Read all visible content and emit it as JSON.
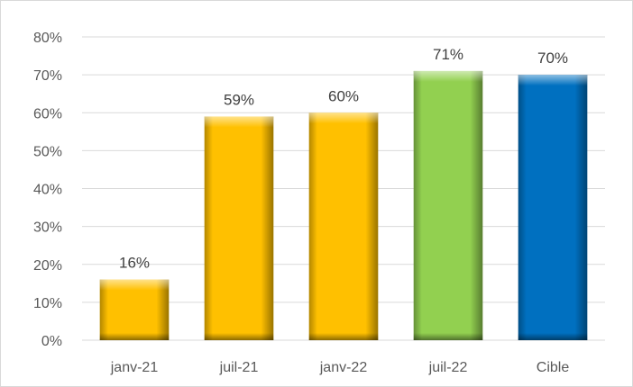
{
  "chart_data": {
    "type": "bar",
    "categories": [
      "janv-21",
      "juil-21",
      "janv-22",
      "juil-22",
      "Cible"
    ],
    "values": [
      16,
      59,
      60,
      71,
      70
    ],
    "data_labels": [
      "16%",
      "59%",
      "60%",
      "71%",
      "70%"
    ],
    "ylim": [
      0,
      80
    ],
    "y_ticks": [
      0,
      10,
      20,
      30,
      40,
      50,
      60,
      70,
      80
    ],
    "y_tick_labels": [
      "0%",
      "10%",
      "20%",
      "30%",
      "40%",
      "50%",
      "60%",
      "70%",
      "80%"
    ],
    "bar_colors": [
      "#FFC000",
      "#FFC000",
      "#FFC000",
      "#92D050",
      "#0070C0"
    ],
    "grid": true,
    "legend": "none"
  }
}
